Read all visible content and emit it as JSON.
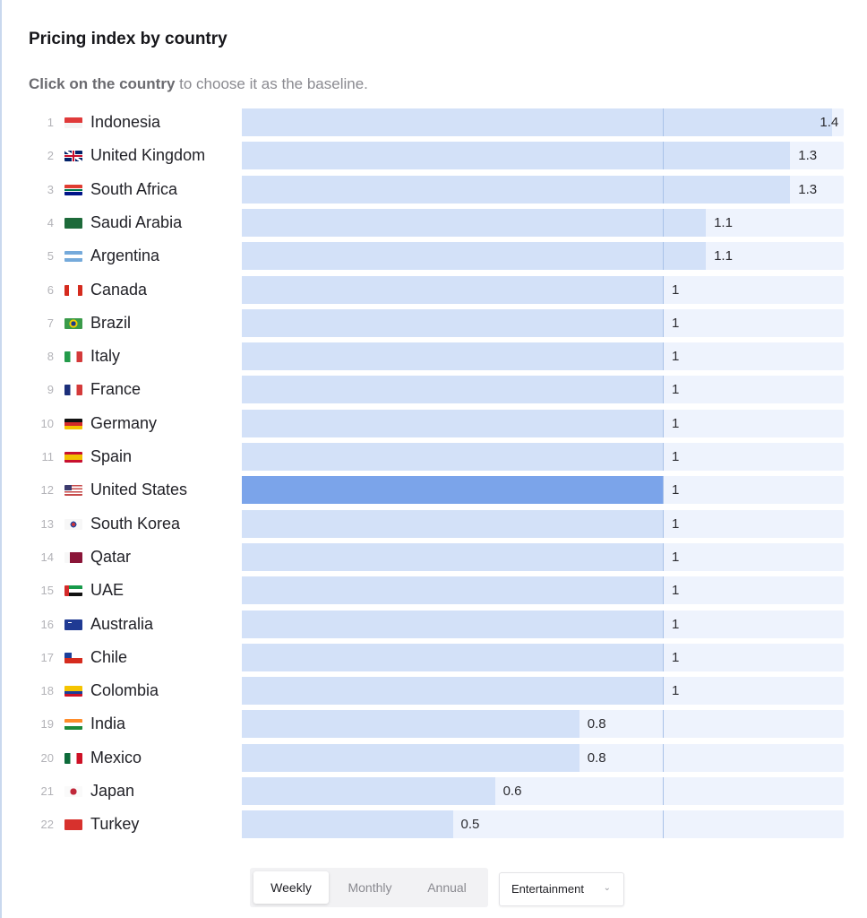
{
  "header": {
    "title": "Pricing index by country",
    "subtitle_bold": "Click on the country",
    "subtitle_rest": " to choose it as the baseline."
  },
  "colors": {
    "bar_fill": "#d3e1f8",
    "bar_selected": "#7ba4ea",
    "track": "#eef3fd",
    "baseline_line": "#a9c2e8"
  },
  "controls": {
    "periods": [
      "Weekly",
      "Monthly",
      "Annual"
    ],
    "active_period": "Weekly",
    "category_select": "Entertainment",
    "chevron_icon": "⌄"
  },
  "chart_data": {
    "type": "bar",
    "orientation": "horizontal",
    "title": "Pricing index by country",
    "baseline_country": "United States",
    "baseline_value": 1,
    "categories": [
      "Indonesia",
      "United Kingdom",
      "South Africa",
      "Saudi Arabia",
      "Argentina",
      "Canada",
      "Brazil",
      "Italy",
      "France",
      "Germany",
      "Spain",
      "United States",
      "South Korea",
      "Qatar",
      "UAE",
      "Australia",
      "Chile",
      "Colombia",
      "India",
      "Mexico",
      "Japan",
      "Turkey"
    ],
    "values": [
      1.4,
      1.3,
      1.3,
      1.1,
      1.1,
      1,
      1,
      1,
      1,
      1,
      1,
      1,
      1,
      1,
      1,
      1,
      1,
      1,
      0.8,
      0.8,
      0.6,
      0.5
    ],
    "xlabel": "",
    "ylabel": ""
  },
  "rows": [
    {
      "rank": "1",
      "country": "Indonesia",
      "value": "1.4",
      "flag": "id"
    },
    {
      "rank": "2",
      "country": "United Kingdom",
      "value": "1.3",
      "flag": "gb"
    },
    {
      "rank": "3",
      "country": "South Africa",
      "value": "1.3",
      "flag": "za"
    },
    {
      "rank": "4",
      "country": "Saudi Arabia",
      "value": "1.1",
      "flag": "sa"
    },
    {
      "rank": "5",
      "country": "Argentina",
      "value": "1.1",
      "flag": "ar"
    },
    {
      "rank": "6",
      "country": "Canada",
      "value": "1",
      "flag": "ca"
    },
    {
      "rank": "7",
      "country": "Brazil",
      "value": "1",
      "flag": "br"
    },
    {
      "rank": "8",
      "country": "Italy",
      "value": "1",
      "flag": "it"
    },
    {
      "rank": "9",
      "country": "France",
      "value": "1",
      "flag": "fr"
    },
    {
      "rank": "10",
      "country": "Germany",
      "value": "1",
      "flag": "de"
    },
    {
      "rank": "11",
      "country": "Spain",
      "value": "1",
      "flag": "es"
    },
    {
      "rank": "12",
      "country": "United States",
      "value": "1",
      "flag": "us",
      "selected": true
    },
    {
      "rank": "13",
      "country": "South Korea",
      "value": "1",
      "flag": "kr"
    },
    {
      "rank": "14",
      "country": "Qatar",
      "value": "1",
      "flag": "qa"
    },
    {
      "rank": "15",
      "country": "UAE",
      "value": "1",
      "flag": "ae"
    },
    {
      "rank": "16",
      "country": "Australia",
      "value": "1",
      "flag": "au"
    },
    {
      "rank": "17",
      "country": "Chile",
      "value": "1",
      "flag": "cl"
    },
    {
      "rank": "18",
      "country": "Colombia",
      "value": "1",
      "flag": "co"
    },
    {
      "rank": "19",
      "country": "India",
      "value": "0.8",
      "flag": "in"
    },
    {
      "rank": "20",
      "country": "Mexico",
      "value": "0.8",
      "flag": "mx"
    },
    {
      "rank": "21",
      "country": "Japan",
      "value": "0.6",
      "flag": "jp"
    },
    {
      "rank": "22",
      "country": "Turkey",
      "value": "0.5",
      "flag": "tr"
    }
  ]
}
